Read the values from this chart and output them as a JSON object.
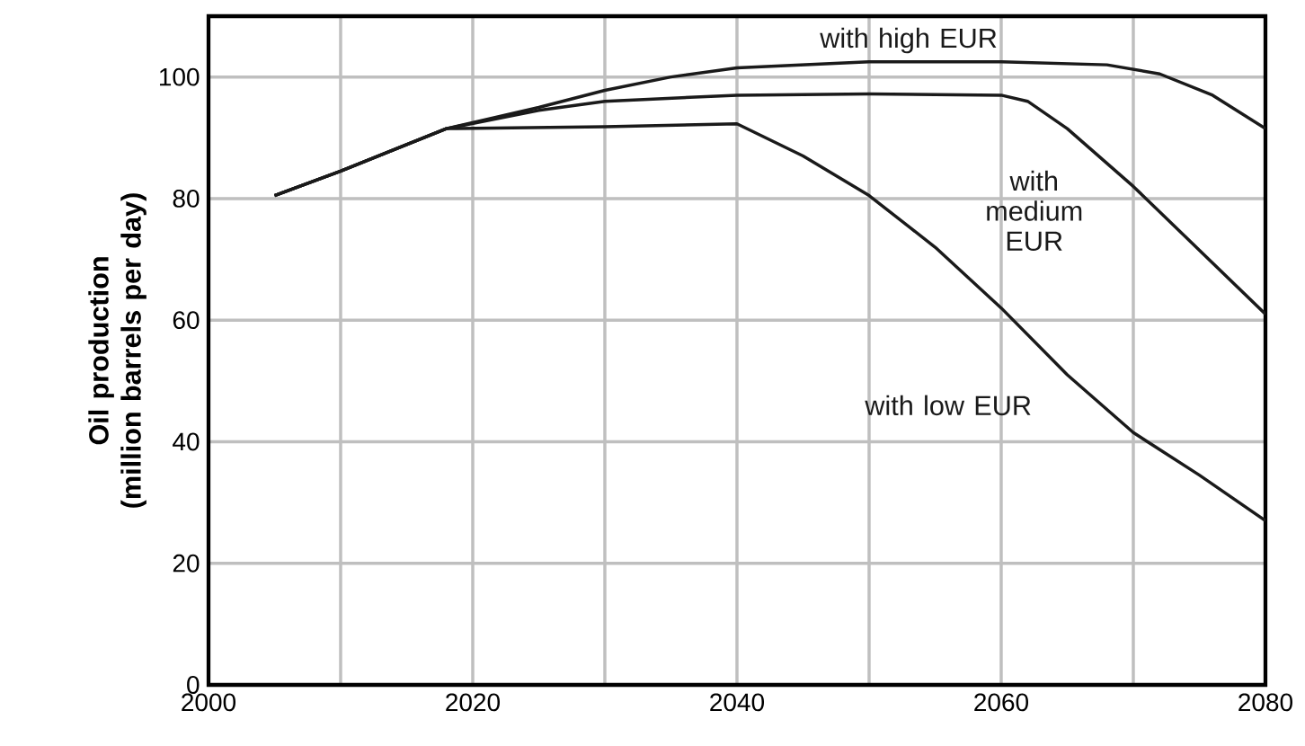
{
  "chart_data": {
    "type": "line",
    "ylabel": "Oil production (million barrels per day)",
    "xlim": [
      2000,
      2080
    ],
    "ylim": [
      0,
      110
    ],
    "xticks": [
      2000,
      {
        "value": 2010,
        "label": null
      },
      2020,
      {
        "value": 2030,
        "label": null
      },
      2040,
      {
        "value": 2050,
        "label": null
      },
      2060,
      {
        "value": 2070,
        "label": null
      },
      2080
    ],
    "yticks": [
      0,
      20,
      40,
      60,
      80,
      100
    ],
    "grid": true,
    "legend": false,
    "marker": "none",
    "line_style": "solid",
    "series": [
      {
        "name": "with high EUR",
        "color": "#1a1a1a",
        "x": [
          2005,
          2010,
          2018,
          2025,
          2030,
          2035,
          2040,
          2050,
          2060,
          2068,
          2072,
          2076,
          2080
        ],
        "values": [
          80.5,
          84.5,
          91.5,
          95,
          97.8,
          100,
          101.5,
          102.5,
          102.5,
          102,
          100.5,
          97,
          91.5
        ]
      },
      {
        "name": "with medium EUR",
        "color": "#1a1a1a",
        "x": [
          2005,
          2010,
          2018,
          2025,
          2030,
          2040,
          2050,
          2060,
          2062,
          2065,
          2070,
          2075,
          2080
        ],
        "values": [
          80.5,
          84.5,
          91.5,
          94.5,
          96,
          97,
          97.2,
          97,
          96,
          91.5,
          82,
          71.5,
          61
        ]
      },
      {
        "name": "with low EUR",
        "color": "#1a1a1a",
        "x": [
          2005,
          2010,
          2018,
          2030,
          2040,
          2045,
          2050,
          2055,
          2060,
          2065,
          2070,
          2075,
          2080
        ],
        "values": [
          80.5,
          84.5,
          91.5,
          91.8,
          92.3,
          87,
          80.5,
          72,
          62,
          51,
          41.5,
          34.5,
          27
        ]
      }
    ]
  }
}
